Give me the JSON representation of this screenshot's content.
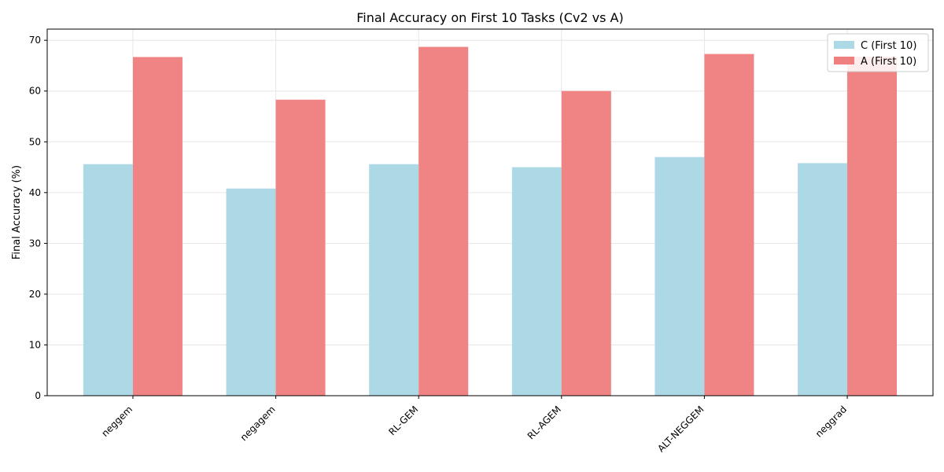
{
  "chart_data": {
    "type": "bar",
    "title": "Final Accuracy on First 10 Tasks (Cv2 vs A)",
    "xlabel": "",
    "ylabel": "Final Accuracy (%)",
    "categories": [
      "neggem",
      "negagem",
      "RL-GEM",
      "RL-AGEM",
      "ALT-NEGGEM",
      "neggrad"
    ],
    "series": [
      {
        "name": "C (First 10)",
        "color": "#add8e6",
        "values": [
          45.6,
          40.8,
          45.6,
          45.0,
          47.0,
          45.8
        ]
      },
      {
        "name": "A (First 10)",
        "color": "#f08080",
        "values": [
          66.7,
          58.3,
          68.7,
          60.0,
          67.3,
          66.8
        ]
      }
    ],
    "ylim": [
      0,
      72.2
    ],
    "yticks": [
      0,
      10,
      20,
      30,
      40,
      50,
      60,
      70
    ],
    "grid": true,
    "legend_position": "top-right"
  }
}
